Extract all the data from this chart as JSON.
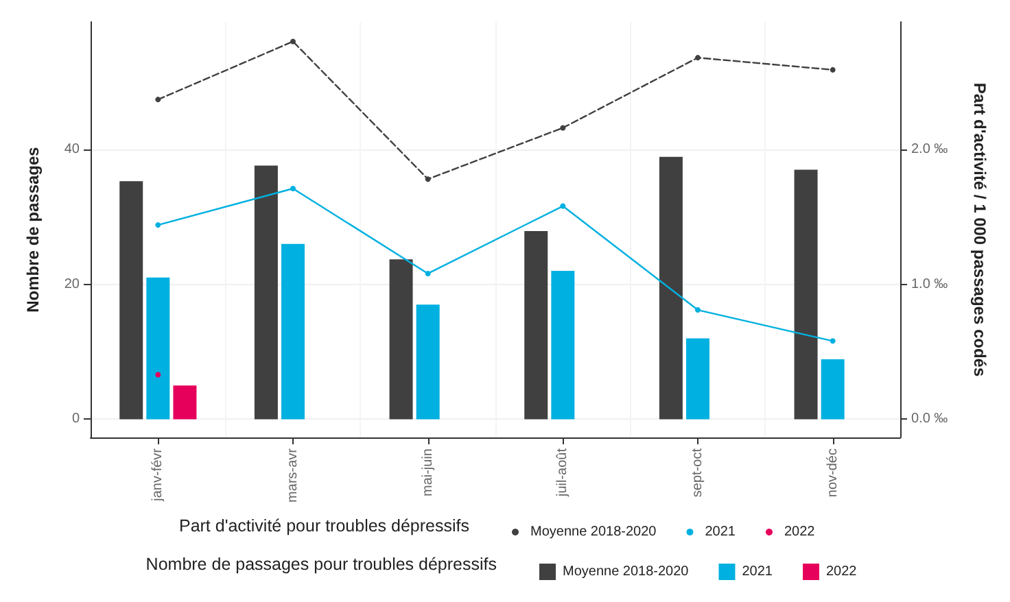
{
  "chart_data": {
    "type": "bar",
    "ylabel": "Nombre de passages",
    "y2label": "Part d'activité / 1 000 passages codés",
    "categories": [
      "janv-févr",
      "mars-avr",
      "mai-juin",
      "juil-août",
      "sept-oct",
      "nov-déc"
    ],
    "series": [
      {
        "name": "Moyenne 2018-2020",
        "type": "line",
        "axis": "y2",
        "color": "#404040",
        "line_style": "dashed",
        "marker": "circle",
        "values": [
          2.37,
          2.8,
          1.78,
          2.16,
          2.68,
          2.59
        ]
      },
      {
        "name": "2021",
        "type": "line",
        "axis": "y2",
        "color": "#00b0e0",
        "line_style": "solid",
        "marker": "circle",
        "values": [
          1.44,
          1.71,
          1.08,
          1.58,
          0.81,
          0.58
        ]
      },
      {
        "name": "2022",
        "type": "line",
        "axis": "y2",
        "color": "#e6005c",
        "line_style": "solid",
        "marker": "circle",
        "values": [
          0.33,
          null,
          null,
          null,
          null,
          null
        ]
      },
      {
        "name": "Moyenne 2018-2020",
        "type": "bar",
        "color": "#404040",
        "values": [
          35.3,
          37.6,
          23.7,
          27.9,
          38.9,
          37
        ]
      },
      {
        "name": "2021",
        "type": "bar",
        "color": "#00b0e0",
        "values": [
          21,
          26,
          17,
          22,
          12,
          8.9
        ]
      },
      {
        "name": "2022",
        "color": "#e6005c",
        "values": [
          5,
          null,
          null,
          null,
          null,
          null
        ]
      }
    ],
    "ylim": [
      -2.7,
      58.9
    ],
    "yticks": [
      0,
      20,
      40
    ],
    "y2lim": [
      -0.135,
      2.945
    ],
    "y2ticks": [
      {
        "value": 0,
        "label": "0.0 ‰"
      },
      {
        "value": 1,
        "label": "1.0 ‰"
      },
      {
        "value": 2,
        "label": "2.0 ‰"
      }
    ],
    "grid": true,
    "legend": "bottom",
    "annotations": [
      "Part d'activité pour troubles dépressifs",
      "Nombre de passages pour troubles dépressifs"
    ]
  }
}
